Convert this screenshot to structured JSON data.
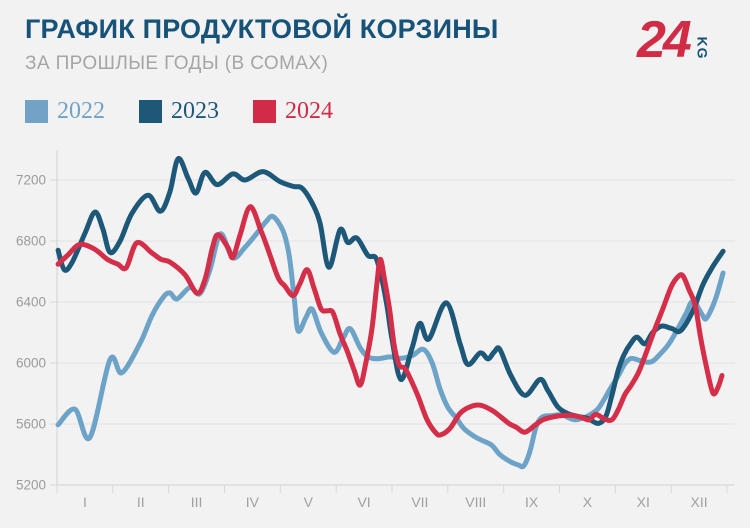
{
  "header": {
    "title": "ГРАФИК ПРОДУКТОВОЙ КОРЗИНЫ",
    "subtitle": "ЗА ПРОШЛЫЕ ГОДЫ (В СОМАХ)"
  },
  "logo": {
    "number": "24",
    "suffix": "KG"
  },
  "legend": [
    {
      "label": "2022",
      "color": "#72a3c6"
    },
    {
      "label": "2023",
      "color": "#1d5878"
    },
    {
      "label": "2024",
      "color": "#d22b47"
    }
  ],
  "colors": {
    "background": "#f2f2f3",
    "grid": "#e3e3e6",
    "axis": "#d2d2d5",
    "tick": "#d8d8da",
    "tick_label": "#9b9b9b",
    "title": "#175379",
    "subtitle": "#a5a5a6"
  },
  "chart_data": {
    "type": "line",
    "title": "ГРАФИК ПРОДУКТОВОЙ КОРЗИНЫ",
    "subtitle": "ЗА ПРОШЛЫЕ ГОДЫ (В СОМАХ)",
    "unit": "soms",
    "grid": "horizontal",
    "legend_position": "top-left",
    "x_axis": {
      "kind": "months",
      "tick_labels": [
        "I",
        "II",
        "III",
        "IV",
        "V",
        "VI",
        "VII",
        "VIII",
        "IX",
        "X",
        "XI",
        "XII"
      ],
      "range": [
        0,
        12
      ]
    },
    "y_axis": {
      "ticks": [
        5200,
        5600,
        6000,
        6400,
        6800,
        7200
      ],
      "range": [
        5200,
        7400
      ]
    },
    "series": [
      {
        "name": "2022",
        "color": "#6ea3c8",
        "points": [
          [
            0.02,
            5595
          ],
          [
            0.32,
            5697
          ],
          [
            0.59,
            5512
          ],
          [
            0.95,
            6022
          ],
          [
            1.16,
            5936
          ],
          [
            1.49,
            6131
          ],
          [
            1.7,
            6310
          ],
          [
            1.9,
            6430
          ],
          [
            2.02,
            6460
          ],
          [
            2.15,
            6420
          ],
          [
            2.38,
            6495
          ],
          [
            2.56,
            6455
          ],
          [
            2.74,
            6613
          ],
          [
            2.87,
            6800
          ],
          [
            2.96,
            6841
          ],
          [
            3.15,
            6690
          ],
          [
            3.37,
            6760
          ],
          [
            3.6,
            6860
          ],
          [
            3.74,
            6925
          ],
          [
            3.87,
            6960
          ],
          [
            4.05,
            6865
          ],
          [
            4.16,
            6700
          ],
          [
            4.25,
            6420
          ],
          [
            4.32,
            6210
          ],
          [
            4.46,
            6300
          ],
          [
            4.57,
            6353
          ],
          [
            4.73,
            6200
          ],
          [
            4.96,
            6070
          ],
          [
            5.12,
            6160
          ],
          [
            5.25,
            6225
          ],
          [
            5.43,
            6100
          ],
          [
            5.57,
            6040
          ],
          [
            5.75,
            6028
          ],
          [
            5.96,
            6040
          ],
          [
            6.14,
            6030
          ],
          [
            6.36,
            6048
          ],
          [
            6.56,
            6090
          ],
          [
            6.72,
            6000
          ],
          [
            6.86,
            5830
          ],
          [
            7.0,
            5710
          ],
          [
            7.15,
            5640
          ],
          [
            7.29,
            5570
          ],
          [
            7.47,
            5520
          ],
          [
            7.63,
            5490
          ],
          [
            7.79,
            5460
          ],
          [
            7.93,
            5400
          ],
          [
            8.11,
            5355
          ],
          [
            8.26,
            5332
          ],
          [
            8.36,
            5325
          ],
          [
            8.47,
            5420
          ],
          [
            8.58,
            5580
          ],
          [
            8.69,
            5645
          ],
          [
            8.87,
            5655
          ],
          [
            9.04,
            5660
          ],
          [
            9.26,
            5628
          ],
          [
            9.44,
            5642
          ],
          [
            9.58,
            5668
          ],
          [
            9.69,
            5700
          ],
          [
            9.8,
            5762
          ],
          [
            9.92,
            5838
          ],
          [
            10.05,
            5915
          ],
          [
            10.17,
            5995
          ],
          [
            10.28,
            6030
          ],
          [
            10.42,
            6018
          ],
          [
            10.55,
            6006
          ],
          [
            10.67,
            6012
          ],
          [
            10.82,
            6065
          ],
          [
            10.96,
            6125
          ],
          [
            11.12,
            6225
          ],
          [
            11.26,
            6320
          ],
          [
            11.39,
            6405
          ],
          [
            11.55,
            6320
          ],
          [
            11.62,
            6290
          ],
          [
            11.73,
            6360
          ],
          [
            11.82,
            6450
          ],
          [
            11.93,
            6590
          ]
        ]
      },
      {
        "name": "2023",
        "color": "#1d5878",
        "points": [
          [
            0.02,
            6740
          ],
          [
            0.13,
            6612
          ],
          [
            0.27,
            6660
          ],
          [
            0.5,
            6850
          ],
          [
            0.68,
            6990
          ],
          [
            0.82,
            6880
          ],
          [
            0.95,
            6725
          ],
          [
            1.13,
            6800
          ],
          [
            1.34,
            6980
          ],
          [
            1.63,
            7100
          ],
          [
            1.85,
            6995
          ],
          [
            2.02,
            7120
          ],
          [
            2.17,
            7340
          ],
          [
            2.35,
            7210
          ],
          [
            2.49,
            7115
          ],
          [
            2.65,
            7250
          ],
          [
            2.87,
            7170
          ],
          [
            3.15,
            7240
          ],
          [
            3.37,
            7200
          ],
          [
            3.69,
            7255
          ],
          [
            3.99,
            7190
          ],
          [
            4.23,
            7158
          ],
          [
            4.39,
            7146
          ],
          [
            4.57,
            7048
          ],
          [
            4.71,
            6918
          ],
          [
            4.87,
            6628
          ],
          [
            5.07,
            6874
          ],
          [
            5.21,
            6790
          ],
          [
            5.37,
            6820
          ],
          [
            5.57,
            6705
          ],
          [
            5.71,
            6690
          ],
          [
            5.82,
            6548
          ],
          [
            5.91,
            6374
          ],
          [
            6.0,
            6157
          ],
          [
            6.16,
            5892
          ],
          [
            6.36,
            6100
          ],
          [
            6.5,
            6260
          ],
          [
            6.66,
            6157
          ],
          [
            6.97,
            6395
          ],
          [
            7.22,
            6125
          ],
          [
            7.36,
            5990
          ],
          [
            7.58,
            6066
          ],
          [
            7.72,
            6027
          ],
          [
            7.83,
            6072
          ],
          [
            7.93,
            6090
          ],
          [
            8.13,
            5918
          ],
          [
            8.38,
            5788
          ],
          [
            8.65,
            5892
          ],
          [
            8.79,
            5820
          ],
          [
            8.97,
            5712
          ],
          [
            9.15,
            5668
          ],
          [
            9.33,
            5650
          ],
          [
            9.51,
            5636
          ],
          [
            9.69,
            5604
          ],
          [
            9.83,
            5650
          ],
          [
            9.94,
            5790
          ],
          [
            10.05,
            5950
          ],
          [
            10.15,
            6050
          ],
          [
            10.28,
            6130
          ],
          [
            10.39,
            6170
          ],
          [
            10.53,
            6126
          ],
          [
            10.67,
            6200
          ],
          [
            10.83,
            6242
          ],
          [
            11.01,
            6226
          ],
          [
            11.17,
            6212
          ],
          [
            11.39,
            6342
          ],
          [
            11.57,
            6515
          ],
          [
            11.75,
            6635
          ],
          [
            11.93,
            6733
          ]
        ]
      },
      {
        "name": "2024",
        "color": "#d42e48",
        "points": [
          [
            0.02,
            6648
          ],
          [
            0.2,
            6710
          ],
          [
            0.41,
            6778
          ],
          [
            0.68,
            6745
          ],
          [
            0.9,
            6680
          ],
          [
            1.09,
            6648
          ],
          [
            1.24,
            6625
          ],
          [
            1.43,
            6788
          ],
          [
            1.7,
            6722
          ],
          [
            1.86,
            6680
          ],
          [
            2.02,
            6662
          ],
          [
            2.29,
            6580
          ],
          [
            2.51,
            6458
          ],
          [
            2.65,
            6548
          ],
          [
            2.78,
            6750
          ],
          [
            2.88,
            6842
          ],
          [
            3.06,
            6758
          ],
          [
            3.15,
            6692
          ],
          [
            3.28,
            6840
          ],
          [
            3.46,
            7025
          ],
          [
            3.65,
            6870
          ],
          [
            3.78,
            6745
          ],
          [
            3.96,
            6560
          ],
          [
            4.08,
            6505
          ],
          [
            4.23,
            6442
          ],
          [
            4.35,
            6520
          ],
          [
            4.48,
            6612
          ],
          [
            4.6,
            6495
          ],
          [
            4.73,
            6355
          ],
          [
            4.84,
            6342
          ],
          [
            4.94,
            6332
          ],
          [
            5.07,
            6190
          ],
          [
            5.19,
            6085
          ],
          [
            5.32,
            5955
          ],
          [
            5.43,
            5855
          ],
          [
            5.53,
            6000
          ],
          [
            5.64,
            6222
          ],
          [
            5.73,
            6520
          ],
          [
            5.79,
            6680
          ],
          [
            5.87,
            6540
          ],
          [
            5.96,
            6342
          ],
          [
            6.04,
            6115
          ],
          [
            6.13,
            5985
          ],
          [
            6.23,
            5966
          ],
          [
            6.34,
            5888
          ],
          [
            6.47,
            5780
          ],
          [
            6.63,
            5626
          ],
          [
            6.79,
            5540
          ],
          [
            6.88,
            5530
          ],
          [
            7.04,
            5572
          ],
          [
            7.22,
            5670
          ],
          [
            7.4,
            5713
          ],
          [
            7.58,
            5723
          ],
          [
            7.79,
            5690
          ],
          [
            7.95,
            5646
          ],
          [
            8.1,
            5602
          ],
          [
            8.22,
            5580
          ],
          [
            8.38,
            5546
          ],
          [
            8.56,
            5592
          ],
          [
            8.7,
            5627
          ],
          [
            8.88,
            5646
          ],
          [
            9.06,
            5656
          ],
          [
            9.24,
            5656
          ],
          [
            9.4,
            5642
          ],
          [
            9.53,
            5627
          ],
          [
            9.65,
            5663
          ],
          [
            9.81,
            5632
          ],
          [
            9.94,
            5628
          ],
          [
            10.05,
            5692
          ],
          [
            10.17,
            5792
          ],
          [
            10.28,
            5852
          ],
          [
            10.42,
            5942
          ],
          [
            10.57,
            6085
          ],
          [
            10.71,
            6225
          ],
          [
            10.85,
            6355
          ],
          [
            11.0,
            6500
          ],
          [
            11.12,
            6565
          ],
          [
            11.21,
            6572
          ],
          [
            11.32,
            6480
          ],
          [
            11.43,
            6380
          ],
          [
            11.53,
            6160
          ],
          [
            11.64,
            5960
          ],
          [
            11.75,
            5802
          ],
          [
            11.84,
            5842
          ],
          [
            11.91,
            5918
          ]
        ]
      }
    ]
  }
}
